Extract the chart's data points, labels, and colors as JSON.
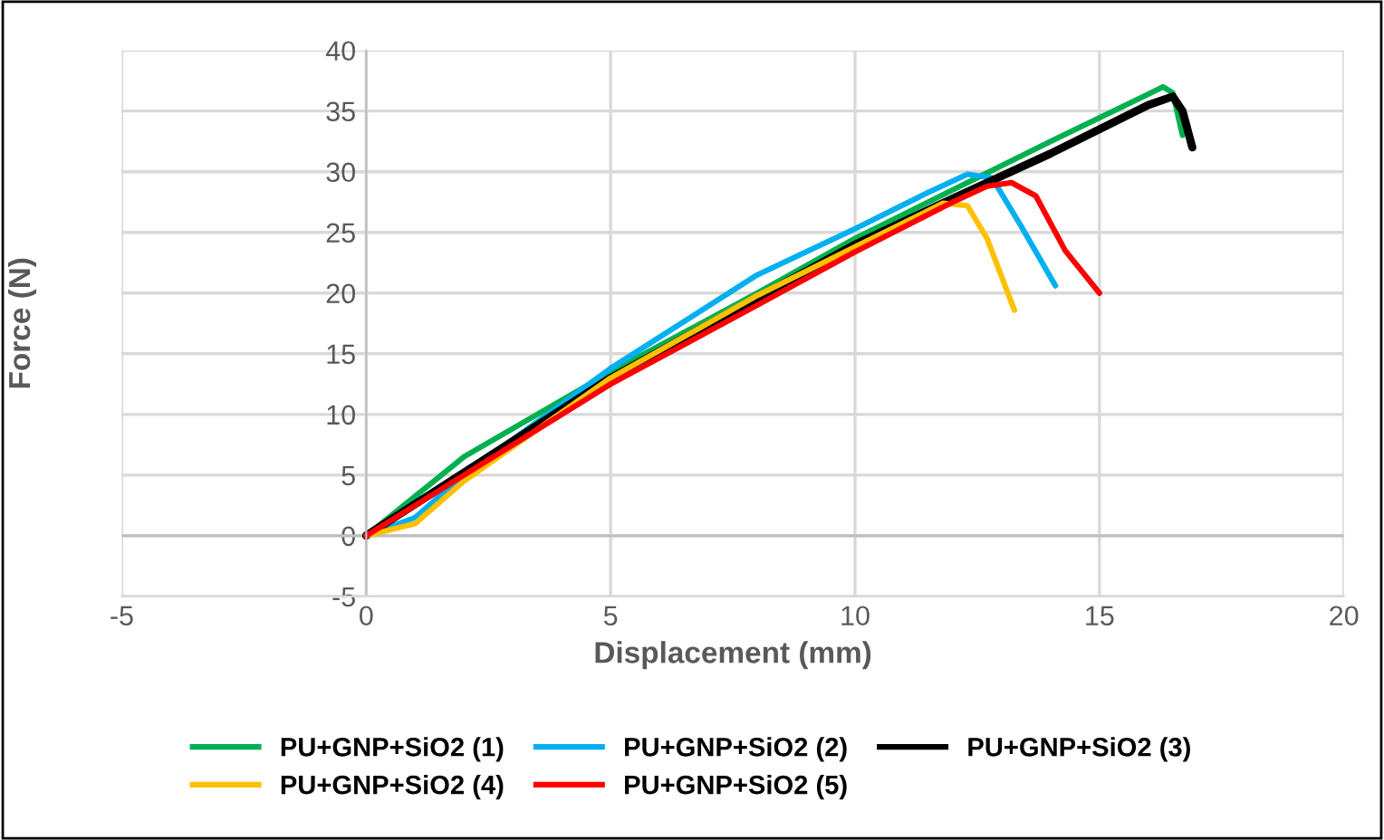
{
  "chart_data": {
    "type": "line",
    "xlabel": "Displacement (mm)",
    "ylabel": "Force (N)",
    "xlim": [
      -5,
      20
    ],
    "xticks": [
      -5,
      0,
      5,
      10,
      15,
      20
    ],
    "ylim": [
      -5,
      40
    ],
    "yticks": [
      -5,
      0,
      5,
      10,
      15,
      20,
      25,
      30,
      35,
      40
    ],
    "grid": true,
    "legend": "bottom",
    "marker": "none",
    "line_style": "solid",
    "series": [
      {
        "name": "PU+GNP+SiO2 (1)",
        "color": "#00b050",
        "x": [
          0,
          2,
          5,
          8,
          10,
          12,
          14,
          16,
          16.3,
          16.5,
          16.7
        ],
        "values": [
          0,
          6.5,
          13.5,
          20,
          24.5,
          28.5,
          32.5,
          36.4,
          37,
          36.5,
          33
        ]
      },
      {
        "name": "PU+GNP+SiO2 (2)",
        "color": "#00b0f0",
        "x": [
          0,
          1,
          2,
          5,
          8,
          10,
          11.5,
          12.3,
          12.8,
          13.4,
          14.1
        ],
        "values": [
          0,
          1.5,
          5,
          13.8,
          21.5,
          25.3,
          28.3,
          29.8,
          29.5,
          25.5,
          20.6
        ]
      },
      {
        "name": "PU+GNP+SiO2 (3)",
        "color": "#000000",
        "x": [
          0,
          5,
          10,
          12,
          14,
          16,
          16.5,
          16.7,
          16.9
        ],
        "values": [
          0,
          13,
          24,
          27.8,
          31.5,
          35.5,
          36.2,
          35,
          32
        ]
      },
      {
        "name": "PU+GNP+SiO2 (4)",
        "color": "#ffc000",
        "x": [
          0,
          1,
          2,
          5,
          8,
          10,
          11.8,
          12.3,
          12.7,
          13.26
        ],
        "values": [
          0,
          1,
          4.5,
          13,
          19.8,
          23.8,
          27.4,
          27.2,
          24.5,
          18.6
        ]
      },
      {
        "name": "PU+GNP+SiO2 (5)",
        "color": "#ff0000",
        "x": [
          0,
          2,
          5,
          8,
          10,
          12,
          12.7,
          13.2,
          13.7,
          14.3,
          15
        ],
        "values": [
          0,
          5,
          12.5,
          19,
          23.4,
          27.5,
          28.8,
          29.1,
          28,
          23.5,
          20
        ]
      }
    ]
  }
}
